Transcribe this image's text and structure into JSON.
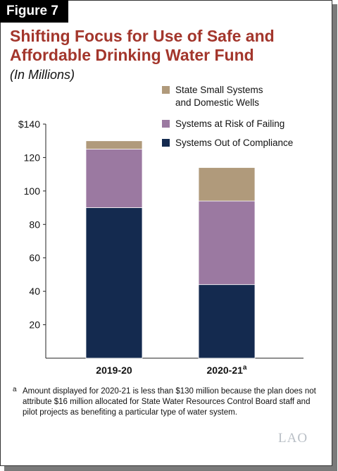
{
  "figure_label": "Figure 7",
  "title_line1": "Shifting Focus for Use of Safe and",
  "title_line2": "Affordable Drinking Water Fund",
  "subtitle": "(In Millions)",
  "footnote_marker": "a",
  "footnote_text": "Amount displayed for 2020-21 is less than $130 million because the plan does not attribute $16 million allocated for State Water Resources Control Board staff and pilot projects as benefiting a particular type of water system.",
  "logo_text": "LAO",
  "chart_data": {
    "type": "bar",
    "stacked": true,
    "categories": [
      "2019-20",
      "2020-21"
    ],
    "category_superscripts": [
      "",
      "a"
    ],
    "series": [
      {
        "name": "Systems Out of Compliance",
        "values": [
          90,
          44
        ],
        "color": "#142a4f"
      },
      {
        "name": "Systems at Risk of Failing",
        "values": [
          35,
          50
        ],
        "color": "#9b79a1"
      },
      {
        "name": "State Small Systems and Domestic Wells",
        "values": [
          5,
          20
        ],
        "color": "#b09a7b"
      }
    ],
    "legend_lines": [
      [
        "State Small Systems",
        "and Domestic Wells"
      ],
      [
        "Systems at Risk of Failing"
      ],
      [
        "Systems Out of Compliance"
      ]
    ],
    "legend_position": "top-right",
    "yticks": [
      "20",
      "40",
      "60",
      "80",
      "100",
      "120",
      "$140"
    ],
    "ylim": [
      0,
      140
    ],
    "grid": false
  }
}
